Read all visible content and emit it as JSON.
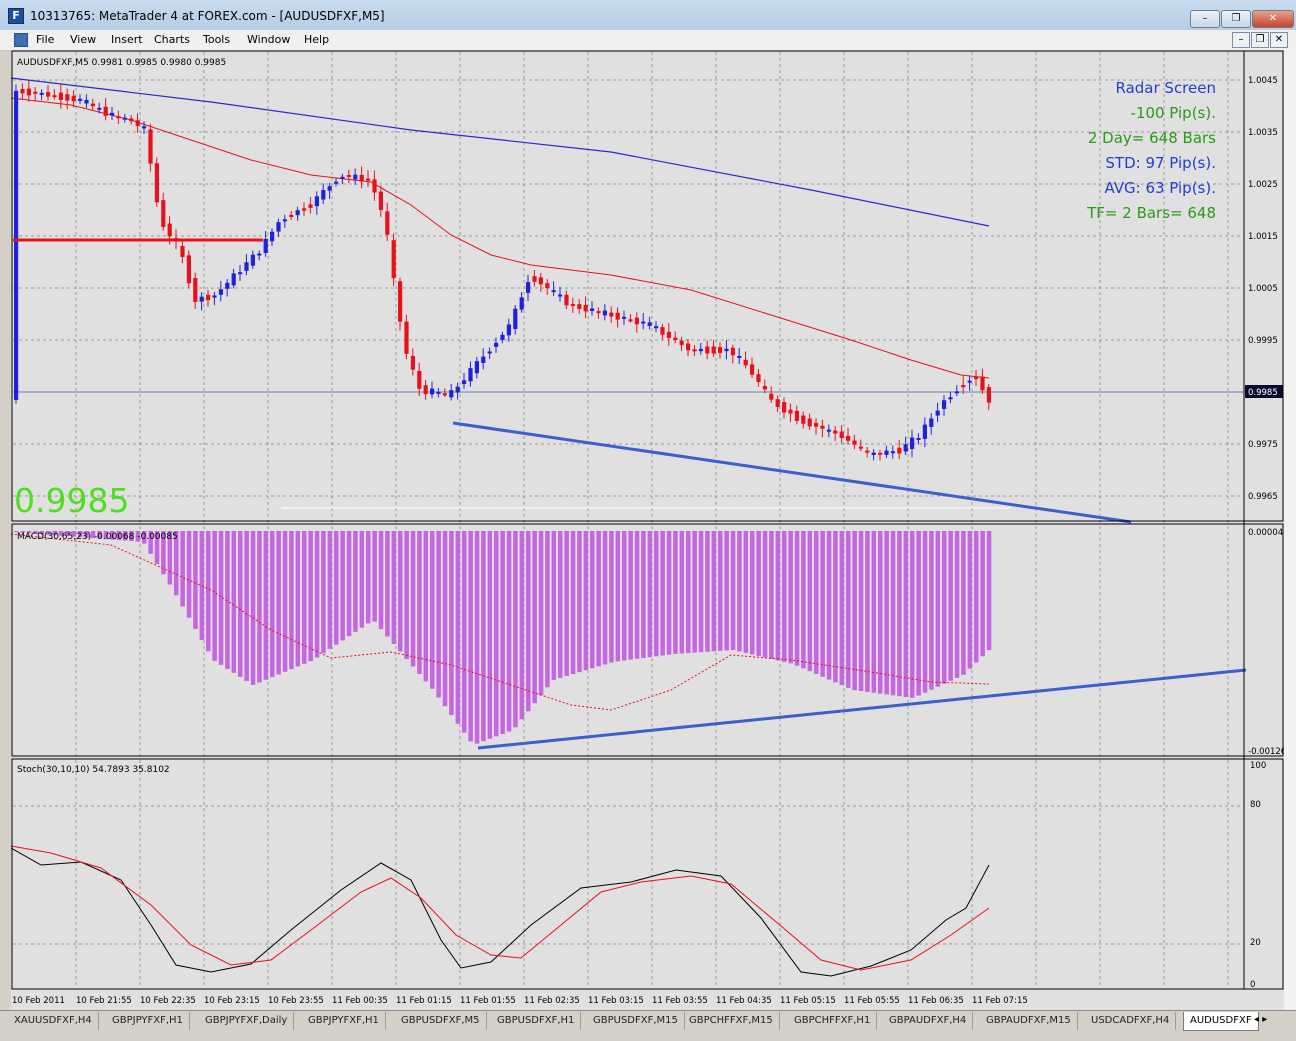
{
  "window": {
    "title": "10313765: MetaTrader 4 at FOREX.com - [AUDUSDFXF,M5]",
    "app_icon": "F",
    "controls": {
      "minimize": "–",
      "restore": "❐",
      "close": "✕"
    }
  },
  "menu": {
    "items": [
      "File",
      "View",
      "Insert",
      "Charts",
      "Tools",
      "Window",
      "Help"
    ],
    "mdi_controls": {
      "minimize": "–",
      "restore": "❐",
      "close": "✕"
    }
  },
  "chart": {
    "header": "AUDUSDFXF,M5  0.9981 0.9985 0.9980 0.9985",
    "big_price": "0.9985",
    "current_price_label": "0.9985",
    "info_lines": [
      {
        "text": "Radar Screen",
        "color": "#1f3fd0"
      },
      {
        "text": "-100 Pip(s).",
        "color": "#2a9a1a"
      },
      {
        "text": "2 Day= 648 Bars",
        "color": "#2a9a1a"
      },
      {
        "text": "STD: 97 Pip(s).",
        "color": "#1f3fd0"
      },
      {
        "text": "AVG: 63 Pip(s).",
        "color": "#1f3fd0"
      },
      {
        "text": "TF= 2 Bars= 648",
        "color": "#2a9a1a"
      }
    ],
    "price_axis": [
      "1.0045",
      "1.0035",
      "1.0025",
      "1.0015",
      "1.0005",
      "0.9995",
      "0.9975",
      "0.9965"
    ],
    "macd_label": "MACD(30,65,23) -0.00068 -0.00085",
    "macd_axis": [
      "0.00004",
      "-0.00126"
    ],
    "stoch_label": "Stoch(30,10,10) 54.7893 35.8102",
    "stoch_axis": [
      "100",
      "80",
      "20",
      "0"
    ],
    "time_axis": [
      "10 Feb 2011",
      "10 Feb 21:55",
      "10 Feb 22:35",
      "10 Feb 23:15",
      "10 Feb 23:55",
      "11 Feb 00:35",
      "11 Feb 01:15",
      "11 Feb 01:55",
      "11 Feb 02:35",
      "11 Feb 03:15",
      "11 Feb 03:55",
      "11 Feb 04:35",
      "11 Feb 05:15",
      "11 Feb 05:55",
      "11 Feb 06:35",
      "11 Feb 07:15"
    ],
    "colors": {
      "background": "#e0e0e0",
      "bull": "#1e22d8",
      "bear": "#e8101a",
      "ma_fast": "#e8101a",
      "ma_slow": "#2a2acc",
      "trendline": "#3c5fd0",
      "macd_hist": "#c466e0",
      "stoch_main": "#000000",
      "stoch_signal": "#e8101a",
      "big_price": "#4ee020"
    }
  },
  "tabs": [
    "XAUUSDFXF,H4",
    "GBPJPYFXF,H1",
    "GBPJPYFXF,Daily",
    "GBPJPYFXF,H1",
    "GBPUSDFXF,M5",
    "GBPUSDFXF,H1",
    "GBPUSDFXF,M15",
    "GBPCHFFXF,M15",
    "GBPCHFFXF,H1",
    "GBPAUDFXF,H4",
    "GBPAUDFXF,M15",
    "USDCADFXF,H4",
    "AUDUSDFXF"
  ],
  "tab_scroll": "◂ ▸"
}
